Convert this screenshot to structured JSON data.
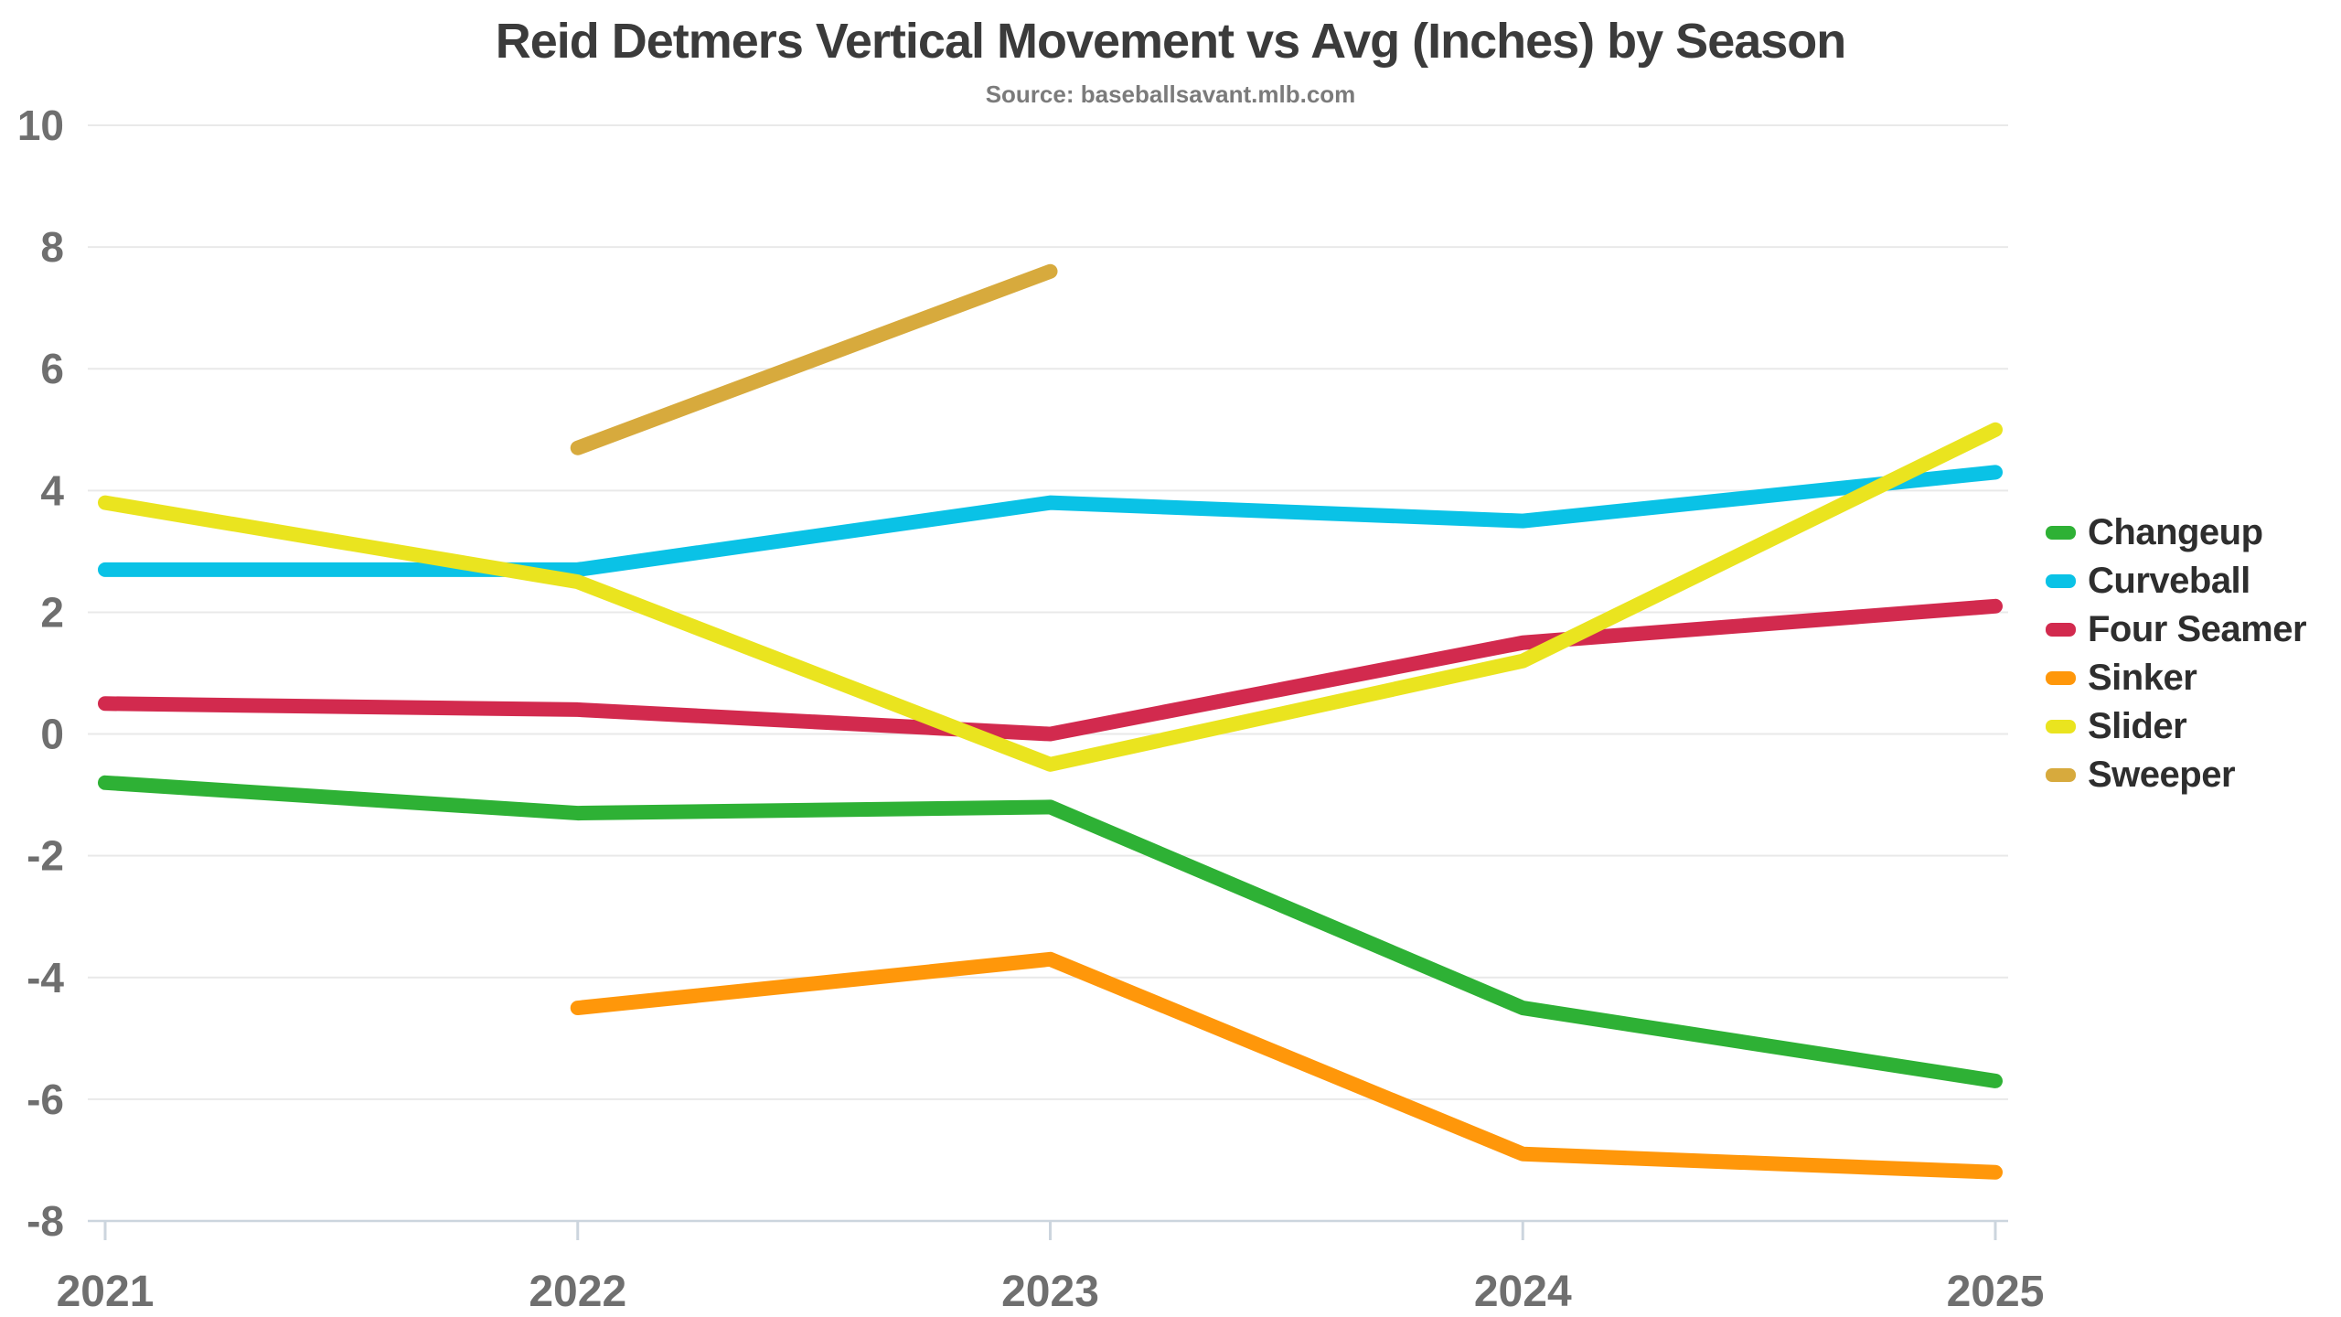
{
  "header": {
    "title": "Reid Detmers Vertical Movement vs Avg (Inches) by Season",
    "source": "Source: baseballsavant.mlb.com"
  },
  "colors": {
    "grid": "#e9e9e9",
    "axis": "#ccd5de",
    "tick_label": "#6f6f6f",
    "title_text": "#3b3b3b",
    "subtitle_text": "#7b7b7b"
  },
  "chart_data": {
    "type": "line",
    "title": "Reid Detmers Vertical Movement vs Avg (Inches) by Season",
    "subtitle": "Source: baseballsavant.mlb.com",
    "xlabel": "",
    "ylabel": "",
    "categories": [
      "2021",
      "2022",
      "2023",
      "2024",
      "2025"
    ],
    "yticks": [
      10,
      8,
      6,
      4,
      2,
      0,
      -2,
      -4,
      -6,
      -8
    ],
    "ylim": [
      -8,
      10
    ],
    "grid": true,
    "legend_position": "right",
    "series": [
      {
        "name": "Changeup",
        "color": "#2eb135",
        "values": [
          -0.8,
          -1.3,
          -1.2,
          -4.5,
          -5.7
        ]
      },
      {
        "name": "Curveball",
        "color": "#0ac2e6",
        "values": [
          2.7,
          2.7,
          3.8,
          3.5,
          4.3
        ]
      },
      {
        "name": "Four Seamer",
        "color": "#d22a4e",
        "values": [
          0.5,
          0.4,
          0.0,
          1.5,
          2.1
        ]
      },
      {
        "name": "Sinker",
        "color": "#ff970a",
        "values": [
          null,
          -4.5,
          -3.7,
          -6.9,
          -7.2
        ]
      },
      {
        "name": "Slider",
        "color": "#eae41f",
        "values": [
          3.8,
          2.5,
          -0.5,
          1.2,
          5.0
        ]
      },
      {
        "name": "Sweeper",
        "color": "#d7aa3d",
        "values": [
          null,
          4.7,
          7.6,
          null,
          null
        ]
      }
    ]
  }
}
